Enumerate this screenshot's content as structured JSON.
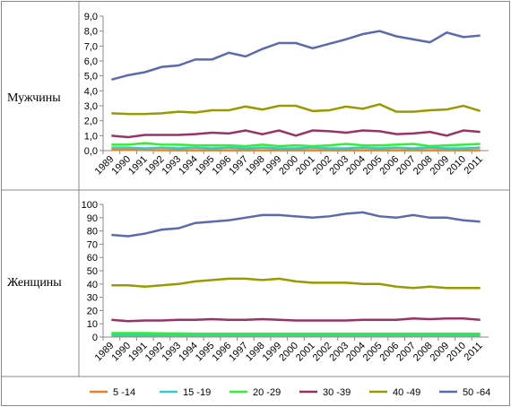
{
  "chart_data": [
    {
      "type": "line",
      "title": "Мужчины",
      "categories": [
        "1989",
        "1990",
        "1991",
        "1992",
        "1993",
        "1994",
        "1995",
        "1996",
        "1997",
        "1998",
        "1999",
        "2000",
        "2001",
        "2002",
        "2003",
        "2004",
        "2005",
        "2006",
        "2007",
        "2008",
        "2009",
        "2010",
        "2011"
      ],
      "ylim": [
        0,
        9
      ],
      "yticks": [
        {
          "value": 0,
          "label": "0,0"
        },
        {
          "value": 1,
          "label": "1,0"
        },
        {
          "value": 2,
          "label": "2,0"
        },
        {
          "value": 3,
          "label": "3,0"
        },
        {
          "value": 4,
          "label": "4,0"
        },
        {
          "value": 5,
          "label": "5,0"
        },
        {
          "value": 6,
          "label": "6,0"
        },
        {
          "value": 7,
          "label": "7,0"
        },
        {
          "value": 8,
          "label": "8,0"
        },
        {
          "value": 9,
          "label": "9,0"
        }
      ],
      "legend": "bottom",
      "series": [
        {
          "name": "5 -14",
          "color": "#e8802e",
          "values": [
            0.05,
            0.05,
            0.04,
            0.03,
            0.02,
            0.02,
            0.02,
            0.02,
            0.02,
            0.02,
            0.02,
            0.02,
            0.02,
            0.02,
            0.02,
            0.02,
            0.02,
            0.02,
            0.02,
            0.02,
            0.02,
            0.02,
            0.02
          ]
        },
        {
          "name": "15 -19",
          "color": "#33cccc",
          "values": [
            0.2,
            0.2,
            0.15,
            0.2,
            0.15,
            0.2,
            0.15,
            0.2,
            0.15,
            0.2,
            0.15,
            0.15,
            0.2,
            0.15,
            0.15,
            0.2,
            0.15,
            0.2,
            0.15,
            0.2,
            0.15,
            0.15,
            0.2
          ]
        },
        {
          "name": "20 -29",
          "color": "#33ee33",
          "values": [
            0.4,
            0.4,
            0.5,
            0.4,
            0.4,
            0.35,
            0.35,
            0.35,
            0.3,
            0.4,
            0.3,
            0.35,
            0.3,
            0.35,
            0.45,
            0.35,
            0.35,
            0.4,
            0.45,
            0.3,
            0.35,
            0.4,
            0.45
          ]
        },
        {
          "name": "30 -39",
          "color": "#993366",
          "values": [
            1.0,
            0.9,
            1.05,
            1.05,
            1.05,
            1.1,
            1.2,
            1.15,
            1.35,
            1.1,
            1.35,
            1.0,
            1.35,
            1.3,
            1.2,
            1.35,
            1.3,
            1.1,
            1.15,
            1.25,
            1.0,
            1.35,
            1.25
          ]
        },
        {
          "name": "40 -49",
          "color": "#999900",
          "values": [
            2.5,
            2.45,
            2.45,
            2.5,
            2.6,
            2.55,
            2.7,
            2.7,
            2.95,
            2.75,
            3.0,
            3.0,
            2.65,
            2.7,
            2.95,
            2.8,
            3.1,
            2.6,
            2.6,
            2.7,
            2.75,
            3.0,
            2.65
          ]
        },
        {
          "name": "50 -64",
          "color": "#5b6aae",
          "values": [
            4.75,
            5.05,
            5.25,
            5.6,
            5.7,
            6.1,
            6.1,
            6.55,
            6.3,
            6.8,
            7.2,
            7.2,
            6.85,
            7.15,
            7.45,
            7.8,
            8.0,
            7.65,
            7.45,
            7.25,
            7.9,
            7.6,
            7.7
          ]
        }
      ]
    },
    {
      "type": "line",
      "title": "Женщины",
      "categories": [
        "1989",
        "1990",
        "1991",
        "1992",
        "1993",
        "1994",
        "1995",
        "1996",
        "1997",
        "1998",
        "1999",
        "2000",
        "2001",
        "2002",
        "2003",
        "2004",
        "2005",
        "2006",
        "2007",
        "2008",
        "2009",
        "2010",
        "2011"
      ],
      "ylim": [
        0,
        100
      ],
      "yticks": [
        0,
        10,
        20,
        30,
        40,
        50,
        60,
        70,
        80,
        90,
        100
      ],
      "series": [
        {
          "color": "#e8802e",
          "values": [
            0.5,
            0.5,
            0.5,
            0.5,
            0.5,
            0.5,
            0.5,
            0.5,
            0.5,
            0.5,
            0.5,
            0.5,
            0.5,
            0.5,
            0.5,
            0.5,
            0.5,
            0.5,
            0.5,
            0.5,
            0.5,
            0.5,
            0.5
          ]
        },
        {
          "color": "#33cccc",
          "values": [
            1.5,
            1.5,
            1.5,
            1.5,
            1.5,
            1.5,
            1.5,
            1.5,
            1.5,
            1.5,
            1.5,
            1.5,
            1.5,
            1.5,
            1.5,
            1.5,
            1.5,
            1.5,
            1.5,
            1.5,
            1.5,
            1.5,
            1.5
          ]
        },
        {
          "color": "#33ee33",
          "values": [
            3,
            3,
            3,
            2.8,
            2.8,
            2.5,
            2.5,
            2.5,
            2.5,
            2.5,
            2.5,
            2.5,
            2.5,
            2.5,
            2.5,
            2.5,
            2.5,
            2.5,
            2.5,
            2.5,
            2.5,
            2.5,
            2.5
          ]
        },
        {
          "color": "#993366",
          "values": [
            13,
            12,
            12.5,
            12.5,
            13,
            13,
            13.5,
            13,
            13,
            13.5,
            13,
            12.5,
            12.5,
            12.5,
            12.5,
            13,
            13,
            13,
            14,
            13.5,
            14,
            14,
            13
          ]
        },
        {
          "color": "#999900",
          "values": [
            39,
            39,
            38,
            39,
            40,
            42,
            43,
            44,
            44,
            43,
            44,
            42,
            41,
            41,
            41,
            40,
            40,
            38,
            37,
            38,
            37,
            37,
            37
          ]
        },
        {
          "color": "#5b6aae",
          "values": [
            77,
            76,
            78,
            81,
            82,
            86,
            87,
            88,
            90,
            92,
            92,
            91,
            90,
            91,
            93,
            94,
            91,
            90,
            92,
            90,
            90,
            88,
            87
          ]
        }
      ]
    }
  ]
}
